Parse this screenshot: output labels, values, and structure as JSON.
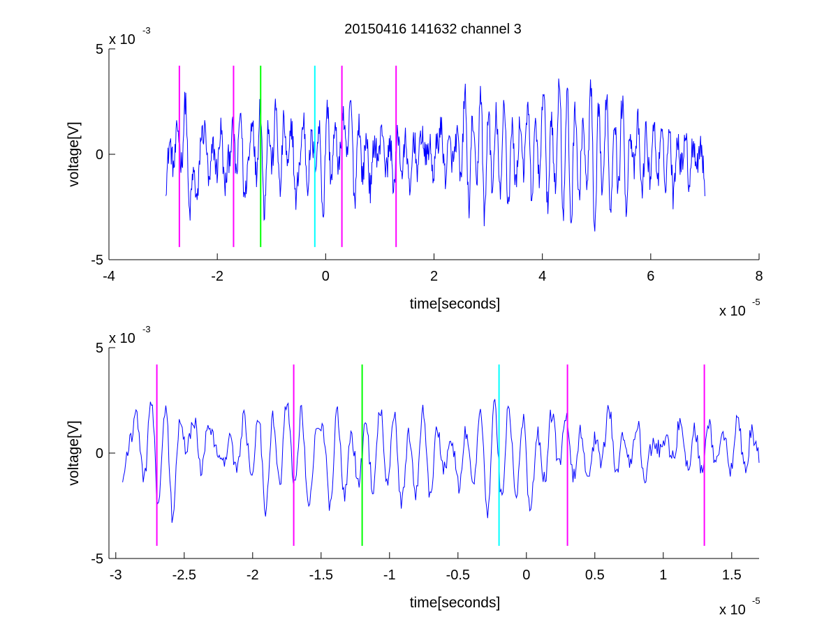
{
  "figure": {
    "title": "20150416 141632 channel 3"
  },
  "chart_data": [
    {
      "type": "line",
      "title": "20150416 141632 channel 3",
      "xlabel": "time[seconds]",
      "ylabel": "voltage[V]",
      "x_multiplier_label": "x 10",
      "x_multiplier_exp": "-5",
      "y_multiplier_label": "x 10",
      "y_multiplier_exp": "-3",
      "xlim": [
        -4,
        8
      ],
      "ylim": [
        -5,
        5
      ],
      "xticks": [
        -4,
        -2,
        0,
        2,
        4,
        6,
        8
      ],
      "xtick_labels": [
        "-4",
        "-2",
        "0",
        "2",
        "4",
        "6",
        "8"
      ],
      "yticks": [
        -5,
        0,
        5
      ],
      "ytick_labels": [
        "-5",
        "0",
        "5"
      ],
      "signal": {
        "color": "#0000ff",
        "x_start": -2.95,
        "x_end": 7.0,
        "n_points": 1000,
        "samples": [
          -1.3,
          0.5,
          -0.6,
          1.2,
          -0.4,
          2.6,
          -2.8,
          -0.9,
          -2.2,
          0.9,
          1.1,
          -1.5,
          0.4,
          -0.8,
          1.2,
          -1.6,
          -0.2,
          1.1,
          -0.9,
          2.0,
          -2.1,
          -0.3,
          1.8,
          -1.0,
          2.4,
          -2.6,
          1.3,
          -0.5,
          2.2,
          -1.8,
          1.5,
          -0.7,
          1.4,
          -2.2,
          -0.4,
          1.6,
          -1.4,
          0.7,
          -0.3,
          1.2,
          -2.8,
          2.3,
          -1.1,
          1.1,
          -0.6,
          1.9,
          -0.2,
          2.4,
          -2.1,
          1.6,
          -1.0,
          0.8,
          -1.7,
          0.6,
          -0.2,
          1.3,
          -0.8,
          0.5,
          -1.5,
          1.0,
          -0.9,
          0.7,
          -2.0,
          0.8,
          -0.7,
          1.1,
          -0.2,
          0.4,
          -0.9,
          0.6,
          1.2,
          -1.0,
          0.5,
          -0.4,
          0.9,
          -1.3,
          2.9,
          -2.4,
          1.7,
          -1.6,
          3.1,
          -3.0,
          2.1,
          -1.8,
          1.9,
          -2.1,
          2.6,
          -2.4,
          1.2,
          -1.4,
          1.5,
          -0.7,
          2.2,
          -2.0,
          1.4,
          -1.2,
          3.4,
          -2.5,
          1.9,
          -1.7,
          3.7,
          -2.9,
          2.8,
          -3.2,
          2.4,
          -2.2,
          1.6,
          -1.8,
          3.2,
          -3.9,
          2.1,
          -2.0,
          2.9,
          -2.6,
          1.8,
          -1.6,
          2.5,
          -2.3,
          1.1,
          -0.8,
          1.5,
          -1.9,
          1.0,
          -1.1,
          1.3,
          -1.0,
          0.8,
          -1.2,
          1.2,
          -2.0,
          0.9,
          -0.6,
          1.0,
          -1.3,
          0.6,
          -0.4,
          0.5,
          -1.4
        ],
        "noise_amplitude": 0.7
      },
      "markers": [
        {
          "x": -2.7,
          "color": "#ff00ff"
        },
        {
          "x": -1.7,
          "color": "#ff00ff"
        },
        {
          "x": -1.2,
          "color": "#00ff00"
        },
        {
          "x": -0.2,
          "color": "#00ffff"
        },
        {
          "x": 0.3,
          "color": "#ff00ff"
        },
        {
          "x": 1.3,
          "color": "#ff00ff"
        }
      ],
      "marker_range": [
        -4.4,
        4.2
      ]
    },
    {
      "type": "line",
      "xlabel": "time[seconds]",
      "ylabel": "voltage[V]",
      "x_multiplier_label": "x 10",
      "x_multiplier_exp": "-5",
      "y_multiplier_label": "x 10",
      "y_multiplier_exp": "-3",
      "xlim": [
        -3.05,
        1.7
      ],
      "ylim": [
        -5,
        5
      ],
      "xticks": [
        -3,
        -2.5,
        -2,
        -1.5,
        -1,
        -0.5,
        0,
        0.5,
        1,
        1.5
      ],
      "xtick_labels": [
        "-3",
        "-2.5",
        "-2",
        "-1.5",
        "-1",
        "-0.5",
        "0",
        "0.5",
        "1",
        "1.5"
      ],
      "yticks": [
        -5,
        0,
        5
      ],
      "ytick_labels": [
        "-5",
        "0",
        "5"
      ],
      "signal": {
        "color": "#0000ff",
        "x_start": -2.95,
        "x_end": 1.7,
        "n_points": 620,
        "samples": [
          -1.3,
          0.6,
          1.7,
          -1.4,
          2.6,
          -2.6,
          2.1,
          -3.0,
          1.3,
          0.2,
          1.5,
          -0.8,
          1.6,
          0.3,
          -0.6,
          0.8,
          -0.9,
          1.7,
          -1.0,
          1.9,
          -2.7,
          1.8,
          -1.3,
          2.5,
          -1.4,
          1.9,
          -2.8,
          0.7,
          1.2,
          -2.4,
          1.8,
          -2.1,
          0.8,
          -1.4,
          1.2,
          -1.6,
          2.2,
          -1.7,
          1.9,
          -2.5,
          0.9,
          -1.9,
          2.2,
          -2.0,
          1.1,
          -0.7,
          0.6,
          -1.5,
          1.1,
          -1.8,
          2.1,
          -2.9,
          2.4,
          -2.1,
          2.2,
          -2.1,
          1.5,
          -2.7,
          0.9,
          -1.3,
          1.9,
          -0.6,
          1.7,
          -1.2,
          0.9,
          -1.0,
          0.6,
          -0.4,
          2.2,
          -1.0,
          0.9,
          -0.6,
          1.4,
          -1.1,
          0.3,
          0.2,
          0.8,
          -0.3,
          1.7,
          -0.8,
          1.1,
          -0.9,
          1.3,
          -0.6,
          1.1,
          -0.7,
          1.6,
          -0.8,
          1.0,
          -0.2
        ],
        "noise_amplitude": 0.45
      },
      "markers": [
        {
          "x": -2.7,
          "color": "#ff00ff"
        },
        {
          "x": -1.7,
          "color": "#ff00ff"
        },
        {
          "x": -1.2,
          "color": "#00ff00"
        },
        {
          "x": -0.2,
          "color": "#00ffff"
        },
        {
          "x": 0.3,
          "color": "#ff00ff"
        },
        {
          "x": 1.3,
          "color": "#ff00ff"
        }
      ],
      "marker_range": [
        -4.4,
        4.2
      ]
    }
  ]
}
